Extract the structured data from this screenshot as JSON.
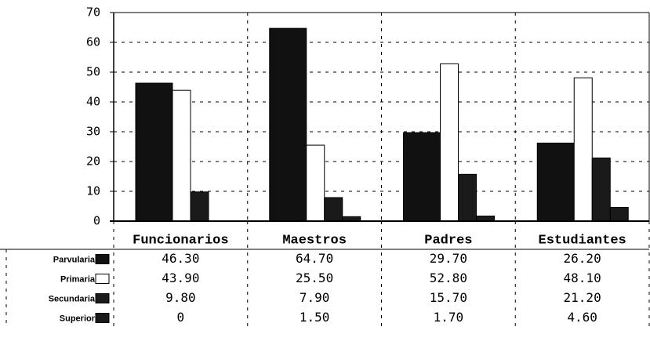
{
  "chart_data": {
    "type": "bar",
    "categories": [
      "Funcionarios",
      "Maestros",
      "Padres",
      "Estudiantes"
    ],
    "series": [
      {
        "name": "Parvularia",
        "color": "#111111",
        "values": [
          46.3,
          64.7,
          29.7,
          26.2
        ],
        "value_labels": [
          "46.30",
          "64.70",
          "29.70",
          "26.20"
        ]
      },
      {
        "name": "Primaria",
        "color": "#ffffff",
        "values": [
          43.9,
          25.5,
          52.8,
          48.1
        ],
        "value_labels": [
          "43.90",
          "25.50",
          "52.80",
          "48.10"
        ]
      },
      {
        "name": "Secundaria",
        "color": "#1a1a1a",
        "values": [
          9.8,
          7.9,
          15.7,
          21.2
        ],
        "value_labels": [
          "9.80",
          "7.90",
          "15.70",
          "21.20"
        ]
      },
      {
        "name": "Superior",
        "color": "#1a1a1a",
        "values": [
          0,
          1.5,
          1.7,
          4.6
        ],
        "value_labels": [
          "0",
          "1.50",
          "1.70",
          "4.60"
        ]
      }
    ],
    "ylim": [
      0,
      70
    ],
    "yticks": [
      0,
      10,
      20,
      30,
      40,
      50,
      60,
      70
    ],
    "grid": true
  }
}
